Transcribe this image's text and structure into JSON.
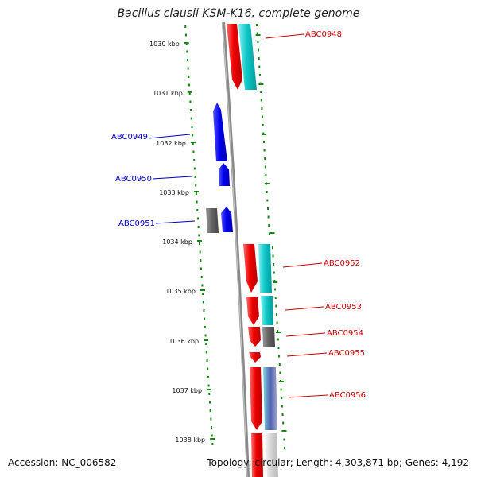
{
  "title": "Bacillus clausii KSM-K16, complete genome",
  "footer": {
    "accession": "Accession: NC_006582",
    "topology": "Topology: circular; Length: 4,303,871 bp; Genes: 4,192"
  },
  "colors": {
    "cds_forward": "#0000ee",
    "cds_reverse": "#ee0000",
    "rna": "#00c8c8",
    "gray_feature": "#666666",
    "tick_color": "#118811",
    "label_forward": "#0000cc",
    "label_reverse": "#cc0000",
    "backbone": "#888888"
  },
  "axis_labels": [
    "1030 kbp",
    "1031 kbp",
    "1032 kbp",
    "1033 kbp",
    "1034 kbp",
    "1035 kbp",
    "1036 kbp",
    "1037 kbp",
    "1038 kbp"
  ],
  "gene_labels": [
    {
      "name": "ABC0948",
      "strand": "reverse"
    },
    {
      "name": "ABC0949",
      "strand": "forward"
    },
    {
      "name": "ABC0950",
      "strand": "forward"
    },
    {
      "name": "ABC0951",
      "strand": "forward"
    },
    {
      "name": "ABC0952",
      "strand": "reverse"
    },
    {
      "name": "ABC0953",
      "strand": "reverse"
    },
    {
      "name": "ABC0954",
      "strand": "reverse"
    },
    {
      "name": "ABC0955",
      "strand": "reverse"
    },
    {
      "name": "ABC0956",
      "strand": "reverse"
    }
  ]
}
